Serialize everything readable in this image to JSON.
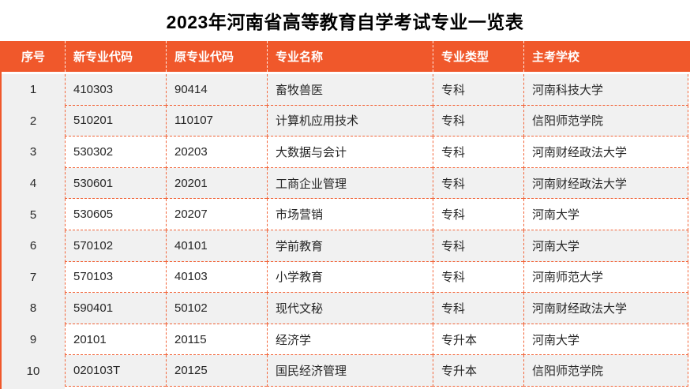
{
  "title": "2023年河南省高等教育自学考试专业一览表",
  "colors": {
    "accent_orange": "#f0582b",
    "dash_orange": "#f26438",
    "row_shade": "#f1f1f1",
    "index_column_bg": "#f0f0f0",
    "header_text": "#ffffff",
    "body_text": "#262626",
    "title_text": "#000000"
  },
  "table": {
    "columns": [
      {
        "key": "index",
        "label": "序号"
      },
      {
        "key": "new_code",
        "label": "新专业代码"
      },
      {
        "key": "old_code",
        "label": "原专业代码"
      },
      {
        "key": "name",
        "label": "专业名称"
      },
      {
        "key": "type",
        "label": "专业类型"
      },
      {
        "key": "school",
        "label": "主考学校"
      }
    ],
    "rows": [
      {
        "index": "1",
        "new_code": "410303",
        "old_code": "90414",
        "name": "畜牧兽医",
        "type": "专科",
        "school": "河南科技大学"
      },
      {
        "index": "2",
        "new_code": "510201",
        "old_code": "110107",
        "name": "计算机应用技术",
        "type": "专科",
        "school": "信阳师范学院"
      },
      {
        "index": "3",
        "new_code": "530302",
        "old_code": "20203",
        "name": "大数据与会计",
        "type": "专科",
        "school": "河南财经政法大学"
      },
      {
        "index": "4",
        "new_code": "530601",
        "old_code": "20201",
        "name": "工商企业管理",
        "type": "专科",
        "school": "河南财经政法大学"
      },
      {
        "index": "5",
        "new_code": "530605",
        "old_code": "20207",
        "name": "市场营销",
        "type": "专科",
        "school": "河南大学"
      },
      {
        "index": "6",
        "new_code": "570102",
        "old_code": "40101",
        "name": "学前教育",
        "type": "专科",
        "school": "河南大学"
      },
      {
        "index": "7",
        "new_code": "570103",
        "old_code": "40103",
        "name": "小学教育",
        "type": "专科",
        "school": "河南师范大学"
      },
      {
        "index": "8",
        "new_code": "590401",
        "old_code": "50102",
        "name": "现代文秘",
        "type": "专科",
        "school": "河南财经政法大学"
      },
      {
        "index": "9",
        "new_code": "20101",
        "old_code": "20115",
        "name": "经济学",
        "type": "专升本",
        "school": "河南大学"
      },
      {
        "index": "10",
        "new_code": "020103T",
        "old_code": "20125",
        "name": "国民经济管理",
        "type": "专升本",
        "school": "信阳师范学院"
      }
    ]
  }
}
